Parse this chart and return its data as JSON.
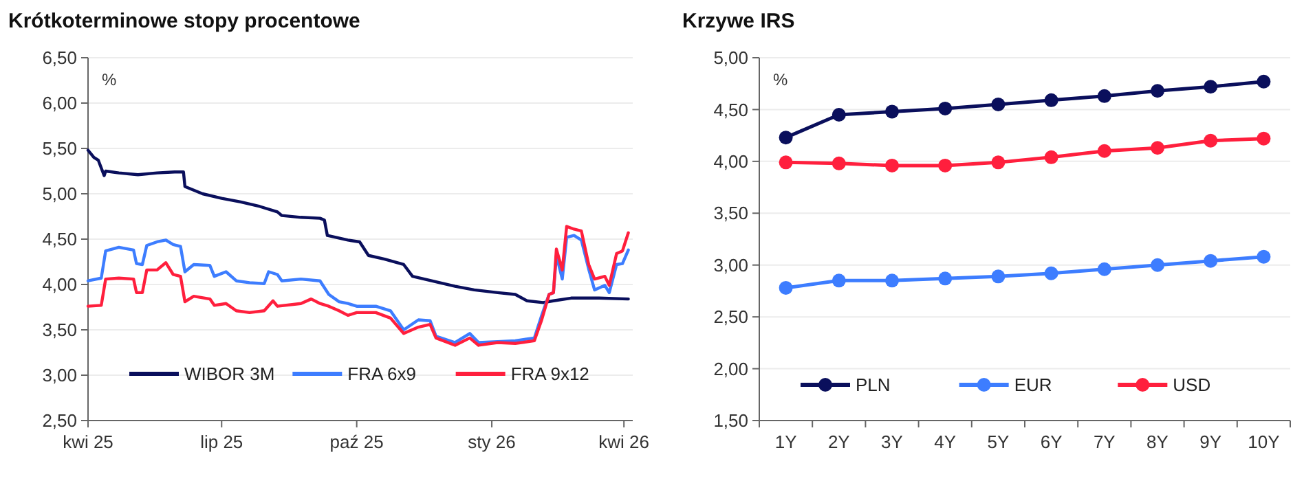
{
  "chart_data": [
    {
      "type": "line",
      "title": "Krótkoterminowe stopy procentowe",
      "annotations": [
        "%"
      ],
      "legend": "bottom",
      "grid": "y",
      "marker": "none",
      "line_style": "solid",
      "xlim": [
        "2025-04-01",
        "2026-04-07"
      ],
      "xticks": [
        {
          "value": "2025-04-01",
          "label": "kwi 25"
        },
        {
          "value": "2025-07-01",
          "label": "lip 25"
        },
        {
          "value": "2025-10-01",
          "label": "paź 25"
        },
        {
          "value": "2026-01-01",
          "label": "sty 26"
        },
        {
          "value": "2026-04-01",
          "label": "kwi 26"
        }
      ],
      "ylim": [
        2.5,
        6.5
      ],
      "yticks": [
        {
          "value": 2.5,
          "label": "2,50"
        },
        {
          "value": 3,
          "label": "3,00"
        },
        {
          "value": 3.5,
          "label": "3,50"
        },
        {
          "value": 4,
          "label": "4,00"
        },
        {
          "value": 4.5,
          "label": "4,50"
        },
        {
          "value": 5,
          "label": "5,00"
        },
        {
          "value": 5.5,
          "label": "5,50"
        },
        {
          "value": 6,
          "label": "6,00"
        },
        {
          "value": 6.5,
          "label": "6,50"
        }
      ],
      "series": [
        {
          "name": "WIBOR 3M",
          "color": "#0a0f5c",
          "x": [
            "2025-04-01",
            "2025-04-05",
            "2025-04-08",
            "2025-04-12",
            "2025-04-13",
            "2025-04-22",
            "2025-05-05",
            "2025-05-18",
            "2025-05-30",
            "2025-06-05",
            "2025-06-06",
            "2025-06-18",
            "2025-07-01",
            "2025-07-14",
            "2025-07-27",
            "2025-08-08",
            "2025-08-11",
            "2025-08-24",
            "2025-09-06",
            "2025-09-09",
            "2025-09-11",
            "2025-09-25",
            "2025-10-03",
            "2025-10-09",
            "2025-10-20",
            "2025-11-02",
            "2025-11-08",
            "2025-11-21",
            "2025-12-07",
            "2025-12-20",
            "2026-01-05",
            "2026-01-17",
            "2026-01-25",
            "2026-02-05",
            "2026-02-12",
            "2026-02-24",
            "2026-03-15",
            "2026-04-04"
          ],
          "values": [
            5.48,
            5.4,
            5.37,
            5.2,
            5.25,
            5.23,
            5.21,
            5.23,
            5.24,
            5.24,
            5.08,
            5.0,
            4.95,
            4.91,
            4.86,
            4.8,
            4.76,
            4.74,
            4.73,
            4.71,
            4.54,
            4.49,
            4.47,
            4.32,
            4.28,
            4.22,
            4.09,
            4.04,
            3.98,
            3.94,
            3.91,
            3.89,
            3.82,
            3.8,
            3.82,
            3.85,
            3.85,
            3.84
          ]
        },
        {
          "name": "FRA 6x9",
          "color": "#3d7dff",
          "x": [
            "2025-04-01",
            "2025-04-10",
            "2025-04-13",
            "2025-04-22",
            "2025-05-02",
            "2025-05-04",
            "2025-05-08",
            "2025-05-11",
            "2025-05-18",
            "2025-05-24",
            "2025-05-29",
            "2025-06-03",
            "2025-06-06",
            "2025-06-12",
            "2025-06-23",
            "2025-06-26",
            "2025-07-04",
            "2025-07-11",
            "2025-07-20",
            "2025-07-30",
            "2025-08-02",
            "2025-08-08",
            "2025-08-11",
            "2025-08-24",
            "2025-09-06",
            "2025-09-12",
            "2025-09-19",
            "2025-09-25",
            "2025-10-01",
            "2025-10-14",
            "2025-10-24",
            "2025-11-02",
            "2025-11-12",
            "2025-11-20",
            "2025-11-24",
            "2025-12-07",
            "2025-12-17",
            "2025-12-23",
            "2026-01-05",
            "2026-01-17",
            "2026-01-30",
            "2026-02-04",
            "2026-02-09",
            "2026-02-12",
            "2026-02-14",
            "2026-02-18",
            "2026-02-21",
            "2026-02-26",
            "2026-03-03",
            "2026-03-08",
            "2026-03-12",
            "2026-03-19",
            "2026-03-22",
            "2026-03-27",
            "2026-03-31",
            "2026-04-04"
          ],
          "values": [
            4.04,
            4.07,
            4.37,
            4.41,
            4.38,
            4.23,
            4.22,
            4.43,
            4.47,
            4.49,
            4.44,
            4.42,
            4.14,
            4.22,
            4.21,
            4.09,
            4.14,
            4.04,
            4.02,
            4.01,
            4.14,
            4.11,
            4.04,
            4.06,
            4.04,
            3.89,
            3.81,
            3.79,
            3.76,
            3.76,
            3.71,
            3.5,
            3.61,
            3.6,
            3.43,
            3.36,
            3.46,
            3.36,
            3.37,
            3.38,
            3.41,
            3.66,
            3.89,
            3.91,
            4.32,
            4.06,
            4.52,
            4.54,
            4.49,
            4.17,
            3.94,
            3.99,
            3.91,
            4.22,
            4.23,
            4.38
          ]
        },
        {
          "name": "FRA 9x12",
          "color": "#ff1f3d",
          "x": [
            "2025-04-01",
            "2025-04-10",
            "2025-04-13",
            "2025-04-22",
            "2025-05-02",
            "2025-05-04",
            "2025-05-08",
            "2025-05-11",
            "2025-05-18",
            "2025-05-24",
            "2025-05-29",
            "2025-06-03",
            "2025-06-06",
            "2025-06-12",
            "2025-06-23",
            "2025-06-26",
            "2025-07-04",
            "2025-07-11",
            "2025-07-20",
            "2025-07-30",
            "2025-08-05",
            "2025-08-08",
            "2025-08-24",
            "2025-08-31",
            "2025-09-06",
            "2025-09-12",
            "2025-09-19",
            "2025-09-25",
            "2025-10-01",
            "2025-10-14",
            "2025-10-24",
            "2025-11-02",
            "2025-11-12",
            "2025-11-20",
            "2025-11-24",
            "2025-12-07",
            "2025-12-17",
            "2025-12-23",
            "2026-01-05",
            "2026-01-17",
            "2026-01-30",
            "2026-02-04",
            "2026-02-09",
            "2026-02-12",
            "2026-02-14",
            "2026-02-18",
            "2026-02-21",
            "2026-02-26",
            "2026-03-03",
            "2026-03-08",
            "2026-03-12",
            "2026-03-19",
            "2026-03-22",
            "2026-03-27",
            "2026-03-31",
            "2026-04-04"
          ],
          "values": [
            3.76,
            3.77,
            4.06,
            4.07,
            4.06,
            3.91,
            3.91,
            4.16,
            4.16,
            4.24,
            4.11,
            4.09,
            3.81,
            3.87,
            3.84,
            3.77,
            3.79,
            3.71,
            3.69,
            3.71,
            3.82,
            3.76,
            3.79,
            3.84,
            3.79,
            3.76,
            3.71,
            3.66,
            3.69,
            3.69,
            3.63,
            3.46,
            3.53,
            3.56,
            3.41,
            3.33,
            3.41,
            3.33,
            3.36,
            3.35,
            3.38,
            3.61,
            3.89,
            3.91,
            4.39,
            4.16,
            4.64,
            4.61,
            4.59,
            4.22,
            4.06,
            4.09,
            3.99,
            4.34,
            4.37,
            4.57
          ]
        }
      ]
    },
    {
      "type": "line",
      "title": "Krzywe IRS",
      "annotations": [
        "%"
      ],
      "legend": "bottom",
      "grid": "y",
      "marker": "circle",
      "line_style": "solid",
      "categories": [
        "1Y",
        "2Y",
        "3Y",
        "4Y",
        "5Y",
        "6Y",
        "7Y",
        "8Y",
        "9Y",
        "10Y"
      ],
      "ylim": [
        1.5,
        5
      ],
      "yticks": [
        {
          "value": 1.5,
          "label": "1,50"
        },
        {
          "value": 2,
          "label": "2,00"
        },
        {
          "value": 2.5,
          "label": "2,50"
        },
        {
          "value": 3,
          "label": "3,00"
        },
        {
          "value": 3.5,
          "label": "3,50"
        },
        {
          "value": 4,
          "label": "4,00"
        },
        {
          "value": 4.5,
          "label": "4,50"
        },
        {
          "value": 5,
          "label": "5,00"
        }
      ],
      "series": [
        {
          "name": "PLN",
          "color": "#0a0f5c",
          "values": [
            4.23,
            4.45,
            4.48,
            4.51,
            4.55,
            4.59,
            4.63,
            4.68,
            4.72,
            4.77
          ]
        },
        {
          "name": "EUR",
          "color": "#3d7dff",
          "values": [
            2.78,
            2.85,
            2.85,
            2.87,
            2.89,
            2.92,
            2.96,
            3.0,
            3.04,
            3.08
          ]
        },
        {
          "name": "USD",
          "color": "#ff1f3d",
          "values": [
            3.99,
            3.98,
            3.96,
            3.96,
            3.99,
            4.04,
            4.1,
            4.13,
            4.2,
            4.22
          ]
        }
      ]
    }
  ]
}
